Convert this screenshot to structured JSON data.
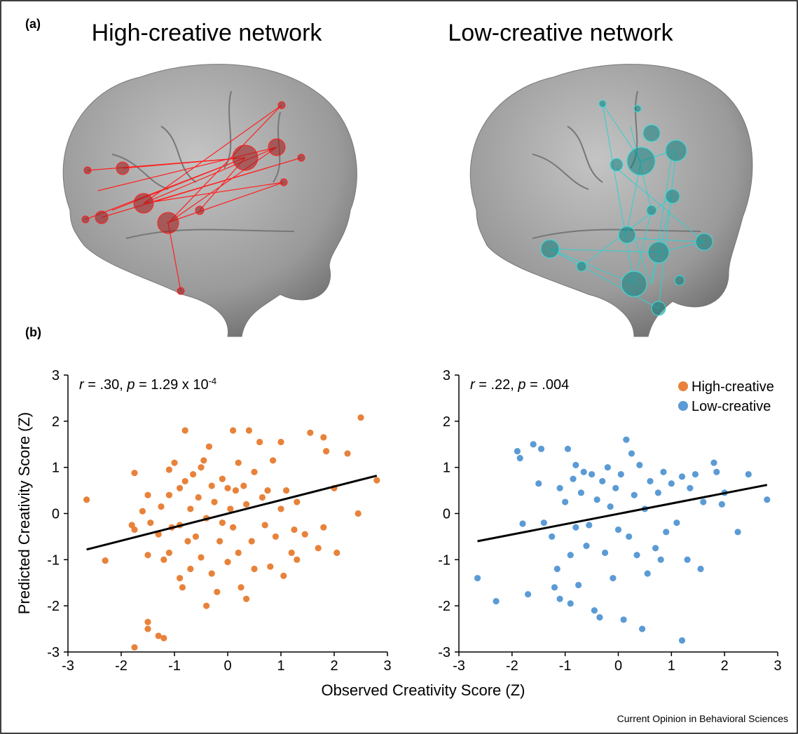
{
  "figure": {
    "panel_a_label": "(a)",
    "panel_b_label": "(b)",
    "brain_titles": [
      "High-creative network",
      "Low-creative network"
    ],
    "xlabel": "Observed Creativity Score (Z)",
    "ylabel": "Predicted Creativity Score (Z)",
    "source": "Current Opinion in Behavioral Sciences"
  },
  "chart_data": [
    {
      "type": "scatter",
      "annotation": [
        "r",
        " = .30, ",
        "p",
        " = 1.29 x 10",
        "-4"
      ],
      "xlim": [
        -3,
        3
      ],
      "ylim": [
        -3,
        3
      ],
      "xticks": [
        -3,
        -2,
        -1,
        0,
        1,
        2,
        3
      ],
      "yticks": [
        -3,
        -2,
        -1,
        0,
        1,
        2,
        3
      ],
      "series": [
        {
          "name": "High-creative",
          "color": "#e8823a",
          "x": [
            -2.65,
            -2.3,
            -1.75,
            -1.5,
            -1.5,
            -1.3,
            -1.2,
            -1.8,
            -1.75,
            -1.75,
            -1.6,
            -1.5,
            -1.45,
            -1.5,
            -1.3,
            -1.25,
            -1.2,
            -1.1,
            -1.1,
            -1.1,
            -1.05,
            -1.0,
            -0.9,
            -0.9,
            -0.9,
            -0.85,
            -0.8,
            -0.8,
            -0.75,
            -0.7,
            -0.7,
            -0.65,
            -0.6,
            -0.55,
            -0.5,
            -0.5,
            -0.45,
            -0.4,
            -0.4,
            -0.35,
            -0.3,
            -0.3,
            -0.25,
            -0.2,
            -0.15,
            -0.1,
            -0.1,
            0,
            0,
            0.05,
            0.1,
            0.1,
            0.15,
            0.2,
            0.2,
            0.25,
            0.3,
            0.35,
            0.35,
            0.4,
            0.45,
            0.5,
            0.5,
            0.6,
            0.65,
            0.7,
            0.75,
            0.8,
            0.85,
            0.9,
            1.0,
            1.0,
            1.05,
            1.1,
            1.2,
            1.25,
            1.3,
            1.3,
            1.45,
            1.55,
            1.7,
            1.8,
            1.8,
            1.85,
            2.0,
            2.05,
            2.25,
            2.45,
            2.5,
            2.8
          ],
          "values": [
            0.3,
            -1.02,
            -2.9,
            -2.35,
            -2.5,
            -2.65,
            -2.7,
            -0.25,
            -0.35,
            0.88,
            0.05,
            0.4,
            -0.2,
            -0.9,
            -0.45,
            0.15,
            -1,
            0.95,
            -0.85,
            0.4,
            -0.3,
            1.1,
            -0.25,
            0.55,
            -1.4,
            -1.6,
            1.8,
            0.7,
            -0.6,
            0.1,
            -1.2,
            0.85,
            -0.5,
            0.35,
            1.0,
            -0.95,
            1.15,
            -2.0,
            -0.1,
            1.45,
            0.6,
            -1.3,
            0.25,
            -1.7,
            -0.6,
            0.75,
            -0.2,
            0.55,
            -1.05,
            0.1,
            1.8,
            -0.3,
            0.5,
            -0.85,
            1.1,
            -1.6,
            0.6,
            -1.85,
            0.2,
            1.8,
            -0.6,
            0.9,
            -1.2,
            1.55,
            0.35,
            -0.25,
            0.5,
            -1.15,
            1.15,
            -0.5,
            1.55,
            0.1,
            -1.35,
            0.5,
            -0.85,
            -0.35,
            -1.0,
            0.25,
            -0.45,
            1.75,
            -0.75,
            -0.3,
            1.65,
            1.35,
            0.55,
            -0.85,
            1.3,
            0.0,
            2.08,
            0.72
          ]
        }
      ],
      "trendline": {
        "x": [
          -2.65,
          2.8
        ],
        "y": [
          -0.78,
          0.82
        ]
      }
    },
    {
      "type": "scatter",
      "annotation": [
        "r",
        " = .22, ",
        "p",
        " = .004"
      ],
      "xlim": [
        -3,
        3
      ],
      "ylim": [
        -3,
        3
      ],
      "xticks": [
        -3,
        -2,
        -1,
        0,
        1,
        2,
        3
      ],
      "yticks": [
        -3,
        -2,
        -1,
        0,
        1,
        2,
        3
      ],
      "legend": "upper right",
      "series": [
        {
          "name": "Low-creative",
          "color": "#5b9bd5",
          "x": [
            -2.65,
            -2.3,
            -1.9,
            -1.85,
            -1.8,
            -1.7,
            -1.6,
            -1.5,
            -1.45,
            -1.4,
            -1.25,
            -1.2,
            -1.15,
            -1.1,
            -1.1,
            -1.0,
            -0.95,
            -0.9,
            -0.9,
            -0.85,
            -0.8,
            -0.8,
            -0.75,
            -0.7,
            -0.65,
            -0.6,
            -0.55,
            -0.5,
            -0.45,
            -0.4,
            -0.35,
            -0.3,
            -0.25,
            -0.2,
            -0.15,
            -0.1,
            -0.05,
            0,
            0.05,
            0.1,
            0.15,
            0.2,
            0.25,
            0.3,
            0.35,
            0.4,
            0.45,
            0.5,
            0.55,
            0.6,
            0.7,
            0.75,
            0.8,
            0.85,
            0.9,
            1.0,
            1.1,
            1.2,
            1.2,
            1.3,
            1.35,
            1.45,
            1.55,
            1.6,
            1.8,
            1.85,
            1.95,
            2.0,
            2.25,
            2.45,
            2.8
          ],
          "values": [
            -1.4,
            -1.9,
            1.35,
            1.2,
            -0.22,
            -1.75,
            1.5,
            0.65,
            1.4,
            -0.2,
            -0.5,
            -1.6,
            -1.2,
            0.55,
            -1.85,
            0.25,
            1.4,
            -0.9,
            -1.95,
            0.75,
            1.05,
            -0.3,
            -1.55,
            0.45,
            0.9,
            -0.7,
            -0.25,
            0.85,
            -2.1,
            0.3,
            -2.25,
            0.7,
            -0.85,
            1.0,
            0.15,
            -1.4,
            0.55,
            -0.35,
            0.85,
            -2.3,
            1.6,
            -0.5,
            1.3,
            0.4,
            -0.9,
            1.05,
            -2.5,
            0.1,
            -1.3,
            0.7,
            -0.75,
            0.45,
            -1.0,
            0.9,
            -0.4,
            0.65,
            -0.2,
            -2.75,
            0.8,
            -1.0,
            0.55,
            0.85,
            -1.2,
            0.25,
            1.1,
            0.9,
            0.2,
            0.45,
            -0.4,
            0.85,
            0.3
          ]
        }
      ],
      "trendline": {
        "x": [
          -2.65,
          2.8
        ],
        "y": [
          -0.6,
          0.62
        ]
      }
    }
  ]
}
